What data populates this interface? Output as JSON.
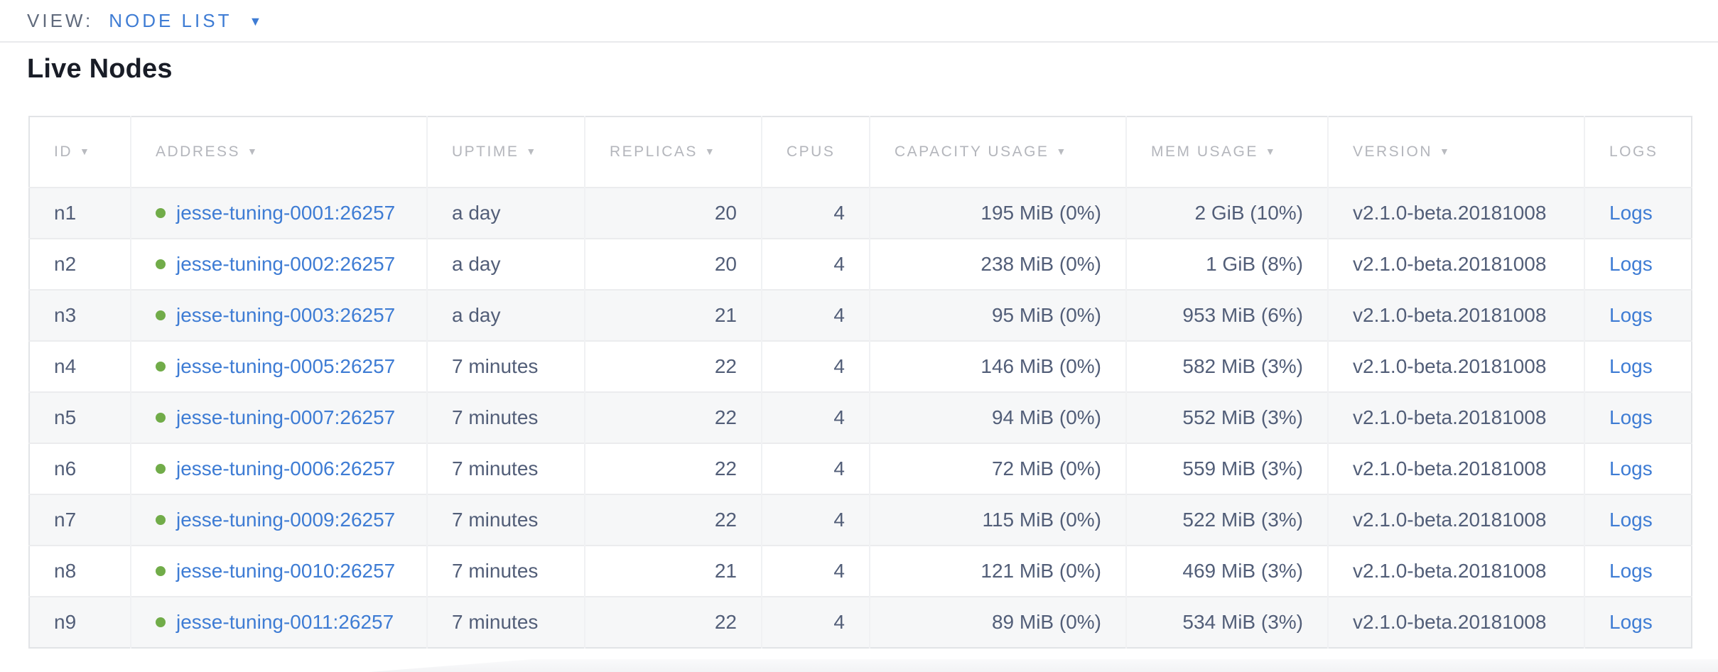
{
  "view_bar": {
    "label": "VIEW:",
    "selected": "NODE LIST"
  },
  "page": {
    "title": "Live Nodes"
  },
  "icons": {
    "caret_down": "▼",
    "sort_desc": "▼",
    "live_status_dot": "node-live-dot"
  },
  "colors": {
    "link_blue": "#3e7cd4",
    "live_green": "#71ac49",
    "header_gray": "#b4b6bc",
    "cell_slate": "#525e78",
    "alt_row_bg": "#f6f7f8"
  },
  "table": {
    "columns": [
      {
        "key": "id",
        "label": "ID",
        "sorted": true
      },
      {
        "key": "address",
        "label": "ADDRESS",
        "sorted": true
      },
      {
        "key": "uptime",
        "label": "UPTIME",
        "sorted": true
      },
      {
        "key": "replicas",
        "label": "REPLICAS",
        "sorted": true
      },
      {
        "key": "cpus",
        "label": "CPUS",
        "sorted": false
      },
      {
        "key": "capacity",
        "label": "CAPACITY USAGE",
        "sorted": true
      },
      {
        "key": "mem",
        "label": "MEM USAGE",
        "sorted": true
      },
      {
        "key": "version",
        "label": "VERSION",
        "sorted": true
      },
      {
        "key": "logs",
        "label": "LOGS",
        "sorted": false
      }
    ],
    "rows": [
      {
        "id": "n1",
        "address": "jesse-tuning-0001:26257",
        "uptime": "a day",
        "replicas": "20",
        "cpus": "4",
        "capacity": "195 MiB (0%)",
        "mem": "2 GiB (10%)",
        "version": "v2.1.0-beta.20181008",
        "logs": "Logs"
      },
      {
        "id": "n2",
        "address": "jesse-tuning-0002:26257",
        "uptime": "a day",
        "replicas": "20",
        "cpus": "4",
        "capacity": "238 MiB (0%)",
        "mem": "1 GiB (8%)",
        "version": "v2.1.0-beta.20181008",
        "logs": "Logs"
      },
      {
        "id": "n3",
        "address": "jesse-tuning-0003:26257",
        "uptime": "a day",
        "replicas": "21",
        "cpus": "4",
        "capacity": "95 MiB (0%)",
        "mem": "953 MiB (6%)",
        "version": "v2.1.0-beta.20181008",
        "logs": "Logs"
      },
      {
        "id": "n4",
        "address": "jesse-tuning-0005:26257",
        "uptime": "7 minutes",
        "replicas": "22",
        "cpus": "4",
        "capacity": "146 MiB (0%)",
        "mem": "582 MiB (3%)",
        "version": "v2.1.0-beta.20181008",
        "logs": "Logs"
      },
      {
        "id": "n5",
        "address": "jesse-tuning-0007:26257",
        "uptime": "7 minutes",
        "replicas": "22",
        "cpus": "4",
        "capacity": "94 MiB (0%)",
        "mem": "552 MiB (3%)",
        "version": "v2.1.0-beta.20181008",
        "logs": "Logs"
      },
      {
        "id": "n6",
        "address": "jesse-tuning-0006:26257",
        "uptime": "7 minutes",
        "replicas": "22",
        "cpus": "4",
        "capacity": "72 MiB (0%)",
        "mem": "559 MiB (3%)",
        "version": "v2.1.0-beta.20181008",
        "logs": "Logs"
      },
      {
        "id": "n7",
        "address": "jesse-tuning-0009:26257",
        "uptime": "7 minutes",
        "replicas": "22",
        "cpus": "4",
        "capacity": "115 MiB (0%)",
        "mem": "522 MiB (3%)",
        "version": "v2.1.0-beta.20181008",
        "logs": "Logs"
      },
      {
        "id": "n8",
        "address": "jesse-tuning-0010:26257",
        "uptime": "7 minutes",
        "replicas": "21",
        "cpus": "4",
        "capacity": "121 MiB (0%)",
        "mem": "469 MiB (3%)",
        "version": "v2.1.0-beta.20181008",
        "logs": "Logs"
      },
      {
        "id": "n9",
        "address": "jesse-tuning-0011:26257",
        "uptime": "7 minutes",
        "replicas": "22",
        "cpus": "4",
        "capacity": "89 MiB (0%)",
        "mem": "534 MiB (3%)",
        "version": "v2.1.0-beta.20181008",
        "logs": "Logs"
      }
    ]
  }
}
